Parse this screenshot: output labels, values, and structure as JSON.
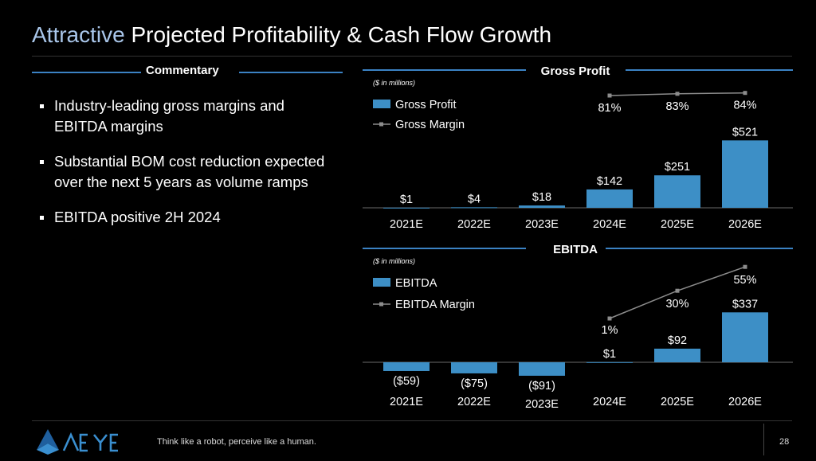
{
  "header": {
    "title_highlight": "Attractive",
    "title_rest": "Projected Profitability & Cash Flow Growth"
  },
  "commentary": {
    "heading": "Commentary",
    "bullets": [
      "Industry-leading gross margins and EBITDA margins",
      "Substantial BOM cost reduction expected over the next 5 years as volume ramps",
      "EBITDA positive 2H 2024"
    ]
  },
  "chart_data": [
    {
      "type": "bar",
      "title": "Gross Profit",
      "subtitle": "($ in millions)",
      "categories": [
        "2021E",
        "2022E",
        "2023E",
        "2024E",
        "2025E",
        "2026E"
      ],
      "series": [
        {
          "name": "Gross Profit",
          "values": [
            1,
            4,
            18,
            142,
            251,
            521
          ],
          "labels": [
            "$1",
            "$4",
            "$18",
            "$142",
            "$251",
            "$521"
          ]
        },
        {
          "name": "Gross Margin",
          "kind": "line",
          "values": [
            null,
            null,
            null,
            81,
            83,
            84
          ],
          "labels": [
            "",
            "",
            "",
            "81%",
            "83%",
            "84%"
          ]
        }
      ],
      "ylim": [
        0,
        521
      ],
      "legend": "top-left",
      "colors": {
        "bar": "#3d8fc6",
        "line": "#8c8c8c"
      }
    },
    {
      "type": "bar",
      "title": "EBITDA",
      "subtitle": "($ in millions)",
      "categories": [
        "2021E",
        "2022E",
        "2023E",
        "2024E",
        "2025E",
        "2026E"
      ],
      "series": [
        {
          "name": "EBITDA",
          "values": [
            -59,
            -75,
            -91,
            1,
            92,
            337
          ],
          "labels": [
            "($59)",
            "($75)",
            "($91)",
            "$1",
            "$92",
            "$337"
          ]
        },
        {
          "name": "EBITDA Margin",
          "kind": "line",
          "values": [
            null,
            null,
            null,
            1,
            30,
            55
          ],
          "labels": [
            "",
            "",
            "",
            "1%",
            "30%",
            "55%"
          ]
        }
      ],
      "ylim": [
        -91,
        337
      ],
      "legend": "top-left",
      "colors": {
        "bar": "#3d8fc6",
        "line": "#8c8c8c"
      }
    }
  ],
  "footer": {
    "brand": "AEYE",
    "tagline": "Think like a robot, perceive like a human.",
    "page": "28"
  }
}
